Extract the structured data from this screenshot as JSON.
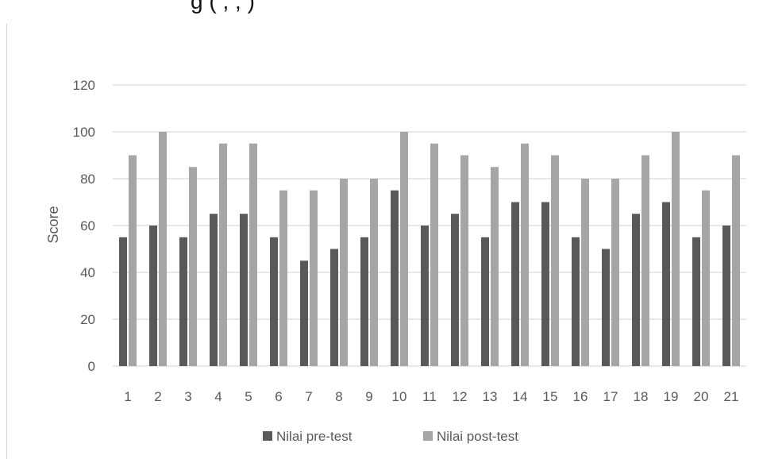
{
  "caption_fragment": "g            (       ,                  ,                   )",
  "chart_data": {
    "type": "bar",
    "title": "",
    "xlabel": "",
    "ylabel": "Score",
    "ylim": [
      0,
      120
    ],
    "yticks": [
      0,
      20,
      40,
      60,
      80,
      100,
      120
    ],
    "grid": true,
    "legend_position": "bottom",
    "categories": [
      "1",
      "2",
      "3",
      "4",
      "5",
      "6",
      "7",
      "8",
      "9",
      "10",
      "11",
      "12",
      "13",
      "14",
      "15",
      "16",
      "17",
      "18",
      "19",
      "20",
      "21"
    ],
    "series": [
      {
        "name": "Nilai pre-test",
        "color": "#595959",
        "values": [
          55,
          60,
          55,
          65,
          65,
          55,
          45,
          50,
          55,
          75,
          60,
          65,
          55,
          70,
          70,
          55,
          50,
          65,
          70,
          55,
          60
        ]
      },
      {
        "name": "Nilai post-test",
        "color": "#a6a6a6",
        "values": [
          90,
          100,
          85,
          95,
          95,
          75,
          75,
          80,
          80,
          100,
          95,
          90,
          85,
          95,
          90,
          80,
          80,
          90,
          100,
          75,
          90
        ]
      }
    ]
  }
}
